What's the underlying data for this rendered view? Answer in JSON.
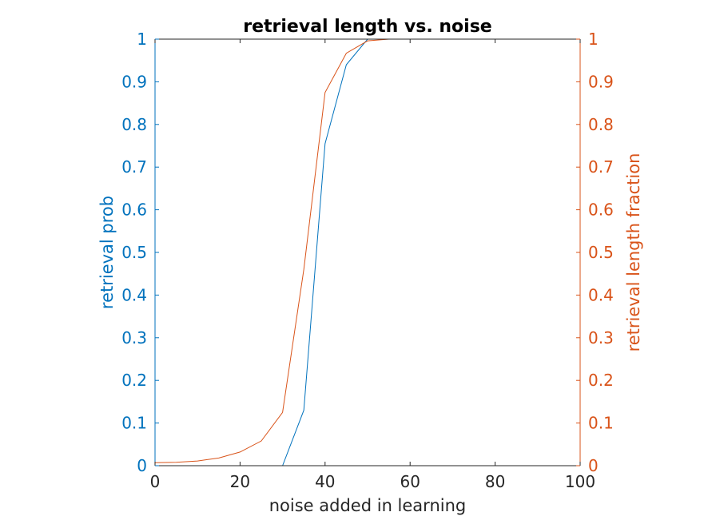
{
  "chart_data": {
    "type": "line",
    "title": "retrieval length vs. noise",
    "xlabel": "noise added in learning",
    "ylabel_left": "retrieval prob",
    "ylabel_right": "retrieval length fraction",
    "xlim": [
      0,
      100
    ],
    "ylim_left": [
      0,
      1
    ],
    "ylim_right": [
      0,
      1
    ],
    "x_ticks": [
      "0",
      "20",
      "40",
      "60",
      "80",
      "100"
    ],
    "y_ticks_left": [
      "0",
      "0.1",
      "0.2",
      "0.3",
      "0.4",
      "0.5",
      "0.6",
      "0.7",
      "0.8",
      "0.9",
      "1"
    ],
    "y_ticks_right": [
      "0",
      "0.1",
      "0.2",
      "0.3",
      "0.4",
      "0.5",
      "0.6",
      "0.7",
      "0.8",
      "0.9",
      "1"
    ],
    "grid": false,
    "colors": {
      "left_axis": "#0072BD",
      "right_axis": "#D95319"
    },
    "series": [
      {
        "axis": "left",
        "color": "#0072BD",
        "x": [
          0,
          5,
          10,
          15,
          20,
          25,
          30,
          35,
          40,
          45,
          50,
          55,
          60,
          65,
          70
        ],
        "y": [
          0,
          0,
          0,
          0,
          0,
          0,
          0,
          0.13,
          0.755,
          0.94,
          1,
          1,
          1,
          1,
          1
        ]
      },
      {
        "axis": "right",
        "color": "#D95319",
        "x": [
          0,
          5,
          10,
          15,
          20,
          25,
          30,
          35,
          40,
          45,
          50,
          55,
          60,
          65
        ],
        "y": [
          0.007,
          0.008,
          0.011,
          0.018,
          0.032,
          0.058,
          0.125,
          0.46,
          0.875,
          0.967,
          0.996,
          1,
          1,
          1
        ]
      }
    ]
  }
}
